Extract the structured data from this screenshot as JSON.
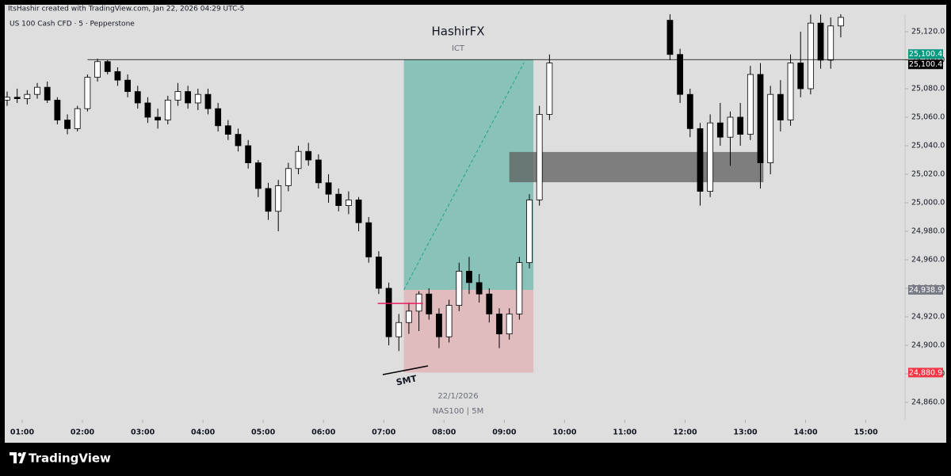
{
  "header": {
    "credit": "ItsHashir created with TradingView.com, Jan 22, 2026 04:29 UTC-5",
    "symbol": "US 100 Cash CFD · 5 · Pepperstone"
  },
  "footer": {
    "brand": "TradingView"
  },
  "chart_data": {
    "type": "candlestick",
    "title": "HashirFX",
    "subtitle": "ICT",
    "annotations": {
      "date": "22/1/2026",
      "instrument": "NAS100 | 5M",
      "smt": "SMT"
    },
    "up_color": "#ffffff",
    "down_color": "#000000",
    "outline_color": "#000000",
    "xlim": [
      45,
      939
    ],
    "ylim": [
      24847.8,
      25132.2
    ],
    "xticks": [
      {
        "value": 60,
        "label": "01:00"
      },
      {
        "value": 120,
        "label": "02:00"
      },
      {
        "value": 180,
        "label": "03:00"
      },
      {
        "value": 240,
        "label": "04:00"
      },
      {
        "value": 300,
        "label": "05:00"
      },
      {
        "value": 360,
        "label": "06:00"
      },
      {
        "value": 420,
        "label": "07:00"
      },
      {
        "value": 480,
        "label": "08:00"
      },
      {
        "value": 540,
        "label": "09:00"
      },
      {
        "value": 600,
        "label": "10:00"
      },
      {
        "value": 660,
        "label": "11:00"
      },
      {
        "value": 720,
        "label": "12:00"
      },
      {
        "value": 780,
        "label": "13:00"
      },
      {
        "value": 840,
        "label": "14:00"
      },
      {
        "value": 900,
        "label": "15:00"
      }
    ],
    "yticks": [
      {
        "value": 24860,
        "label": "24,860.0"
      },
      {
        "value": 24880,
        "label": "24,880.0"
      },
      {
        "value": 24900,
        "label": "24,900.0"
      },
      {
        "value": 24920,
        "label": "24,920.0"
      },
      {
        "value": 24940,
        "label": "24,940.0"
      },
      {
        "value": 24960,
        "label": "24,960.0"
      },
      {
        "value": 24980,
        "label": "24,980.0"
      },
      {
        "value": 25000,
        "label": "25,000.0"
      },
      {
        "value": 25020,
        "label": "25,020.0"
      },
      {
        "value": 25040,
        "label": "25,040.0"
      },
      {
        "value": 25060,
        "label": "25,060.0"
      },
      {
        "value": 25080,
        "label": "25,080.0"
      },
      {
        "value": 25100,
        "label": "25,100.0"
      },
      {
        "value": 25120,
        "label": "25,120.0"
      }
    ],
    "x": [
      45,
      55,
      65,
      75,
      85,
      95,
      105,
      115,
      125,
      135,
      145,
      155,
      165,
      175,
      185,
      195,
      205,
      215,
      225,
      235,
      245,
      255,
      265,
      275,
      285,
      295,
      305,
      315,
      325,
      335,
      345,
      355,
      365,
      375,
      385,
      395,
      405,
      415,
      425,
      435,
      445,
      455,
      465,
      475,
      485,
      495,
      505,
      515,
      525,
      535,
      545,
      555,
      565,
      575,
      585,
      705,
      715,
      725,
      735,
      745,
      755,
      765,
      775,
      785,
      795,
      805,
      815,
      825,
      835,
      845,
      855,
      865,
      875
    ],
    "candles": [
      [
        25072,
        25078,
        25068,
        25074
      ],
      [
        25074,
        25080,
        25070,
        25073
      ],
      [
        25073,
        25079,
        25069,
        25076
      ],
      [
        25076,
        25084,
        25073,
        25081
      ],
      [
        25081,
        25085,
        25070,
        25072
      ],
      [
        25072,
        25074,
        25055,
        25058
      ],
      [
        25058,
        25062,
        25048,
        25052
      ],
      [
        25052,
        25068,
        25050,
        25066
      ],
      [
        25066,
        25090,
        25064,
        25088
      ],
      [
        25088,
        25101,
        25085,
        25099
      ],
      [
        25099,
        25100,
        25090,
        25092
      ],
      [
        25092,
        25095,
        25082,
        25086
      ],
      [
        25086,
        25090,
        25074,
        25078
      ],
      [
        25078,
        25082,
        25066,
        25070
      ],
      [
        25070,
        25074,
        25056,
        25060
      ],
      [
        25060,
        25066,
        25052,
        25058
      ],
      [
        25058,
        25075,
        25055,
        25072
      ],
      [
        25072,
        25084,
        25068,
        25078
      ],
      [
        25078,
        25082,
        25066,
        25070
      ],
      [
        25070,
        25080,
        25065,
        25076
      ],
      [
        25076,
        25080,
        25062,
        25066
      ],
      [
        25066,
        25070,
        25050,
        25054
      ],
      [
        25054,
        25058,
        25044,
        25048
      ],
      [
        25048,
        25052,
        25036,
        25040
      ],
      [
        25040,
        25044,
        25024,
        25028
      ],
      [
        25028,
        25030,
        25004,
        25010
      ],
      [
        25010,
        25014,
        24988,
        24994
      ],
      [
        24994,
        25016,
        24980,
        25012
      ],
      [
        25012,
        25028,
        25008,
        25024
      ],
      [
        25024,
        25040,
        25020,
        25036
      ],
      [
        25036,
        25042,
        25026,
        25030
      ],
      [
        25030,
        25034,
        25010,
        25014
      ],
      [
        25014,
        25020,
        25000,
        25006
      ],
      [
        25006,
        25010,
        24994,
        24998
      ],
      [
        24998,
        25008,
        24992,
        25002
      ],
      [
        25002,
        25004,
        24980,
        24986
      ],
      [
        24986,
        24990,
        24958,
        24962
      ],
      [
        24962,
        24966,
        24936,
        24940
      ],
      [
        24940,
        24944,
        24900,
        24906
      ],
      [
        24906,
        24922,
        24896,
        24916
      ],
      [
        24916,
        24930,
        24908,
        24924
      ],
      [
        24924,
        24938,
        24910,
        24936
      ],
      [
        24936,
        24940,
        24918,
        24922
      ],
      [
        24922,
        24926,
        24898,
        24906
      ],
      [
        24906,
        24932,
        24902,
        24928
      ],
      [
        24928,
        24958,
        24924,
        24952
      ],
      [
        24952,
        24962,
        24936,
        24944
      ],
      [
        24944,
        24950,
        24930,
        24936
      ],
      [
        24936,
        24940,
        24916,
        24922
      ],
      [
        24922,
        24926,
        24898,
        24908
      ],
      [
        24908,
        24926,
        24904,
        24922
      ],
      [
        24922,
        24962,
        24918,
        24958
      ],
      [
        24958,
        25006,
        24954,
        25002
      ],
      [
        25002,
        25068,
        24998,
        25062
      ],
      [
        25062,
        25104,
        25058,
        25098
      ],
      [
        25128,
        25134,
        25100,
        25104
      ],
      [
        25104,
        25108,
        25070,
        25076
      ],
      [
        25076,
        25080,
        25046,
        25052
      ],
      [
        25052,
        25056,
        24998,
        25008
      ],
      [
        25008,
        25062,
        25004,
        25056
      ],
      [
        25056,
        25070,
        25040,
        25046
      ],
      [
        25046,
        25064,
        25026,
        25060
      ],
      [
        25060,
        25070,
        25040,
        25048
      ],
      [
        25048,
        25096,
        25044,
        25090
      ],
      [
        25090,
        25098,
        25010,
        25028
      ],
      [
        25028,
        25082,
        25020,
        25076
      ],
      [
        25076,
        25086,
        25050,
        25058
      ],
      [
        25058,
        25104,
        25054,
        25098
      ],
      [
        25098,
        25120,
        25074,
        25080
      ],
      [
        25080,
        25132,
        25076,
        25126
      ],
      [
        25126,
        25132,
        25094,
        25100
      ],
      [
        25100,
        25130,
        25094,
        25124
      ],
      [
        25124,
        25134,
        25116,
        25130
      ]
    ],
    "price_labels": [
      {
        "value": 25100.4,
        "label": "25,100.4",
        "color": "#089981"
      },
      {
        "value": 25100.4,
        "label": "25,100.4",
        "color": "#000000"
      },
      {
        "value": 24938.9,
        "label": "24,938.9",
        "color": "#787b86"
      },
      {
        "value": 24880.9,
        "label": "24,880.9",
        "color": "#f23645"
      }
    ],
    "position_x": [
      440,
      569
    ],
    "zone": {
      "x": [
        545,
        798
      ],
      "y": [
        25014.4,
        25035.6
      ],
      "color": "#5d5d5d"
    },
    "marker": {
      "x": [
        414,
        459
      ],
      "y": 24929.4,
      "color": "#e91e63"
    }
  }
}
